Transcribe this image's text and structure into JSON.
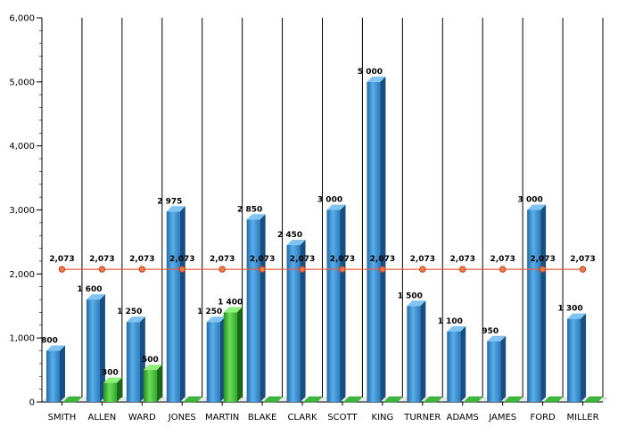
{
  "chart_data": {
    "type": "bar",
    "categories": [
      "SMITH",
      "ALLEN",
      "WARD",
      "JONES",
      "MARTIN",
      "BLAKE",
      "CLARK",
      "SCOTT",
      "KING",
      "TURNER",
      "ADAMS",
      "JAMES",
      "FORD",
      "MILLER"
    ],
    "series": [
      {
        "type": "bar",
        "color": "#3a8fd4",
        "values": [
          800,
          1600,
          1250,
          2975,
          1250,
          2850,
          2450,
          3000,
          5000,
          1500,
          1100,
          950,
          3000,
          1300
        ],
        "labels": [
          "800",
          "1 600",
          "1 250",
          "2 975",
          "1 250",
          "2 850",
          "2 450",
          "3 000",
          "5 000",
          "1 500",
          "1 100",
          "950",
          "3 000",
          "1 300"
        ]
      },
      {
        "type": "bar",
        "color": "#3cb93c",
        "values": [
          0,
          300,
          500,
          0,
          1400,
          0,
          0,
          0,
          0,
          0,
          0,
          0,
          0,
          0
        ],
        "labels": [
          "",
          "300",
          "500",
          "",
          "1 400",
          "",
          "",
          "",
          "",
          "",
          "",
          "",
          "",
          ""
        ]
      },
      {
        "type": "line",
        "color": "#e8603c",
        "values": [
          2073,
          2073,
          2073,
          2073,
          2073,
          2073,
          2073,
          2073,
          2073,
          2073,
          2073,
          2073,
          2073,
          2073
        ],
        "labels": [
          "2,073",
          "2,073",
          "2,073",
          "2,073",
          "2,073",
          "2,073",
          "2,073",
          "2,073",
          "2,073",
          "2,073",
          "2,073",
          "2,073",
          "2,073",
          "2,073"
        ]
      }
    ],
    "ylim": [
      0,
      6000
    ],
    "yticks": [
      0,
      1000,
      2000,
      3000,
      4000,
      5000,
      6000
    ],
    "ytick_labels": [
      "0",
      "1,000",
      "2,000",
      "3,000",
      "4,000",
      "5,000",
      "6,000"
    ],
    "grid": "vertical"
  }
}
